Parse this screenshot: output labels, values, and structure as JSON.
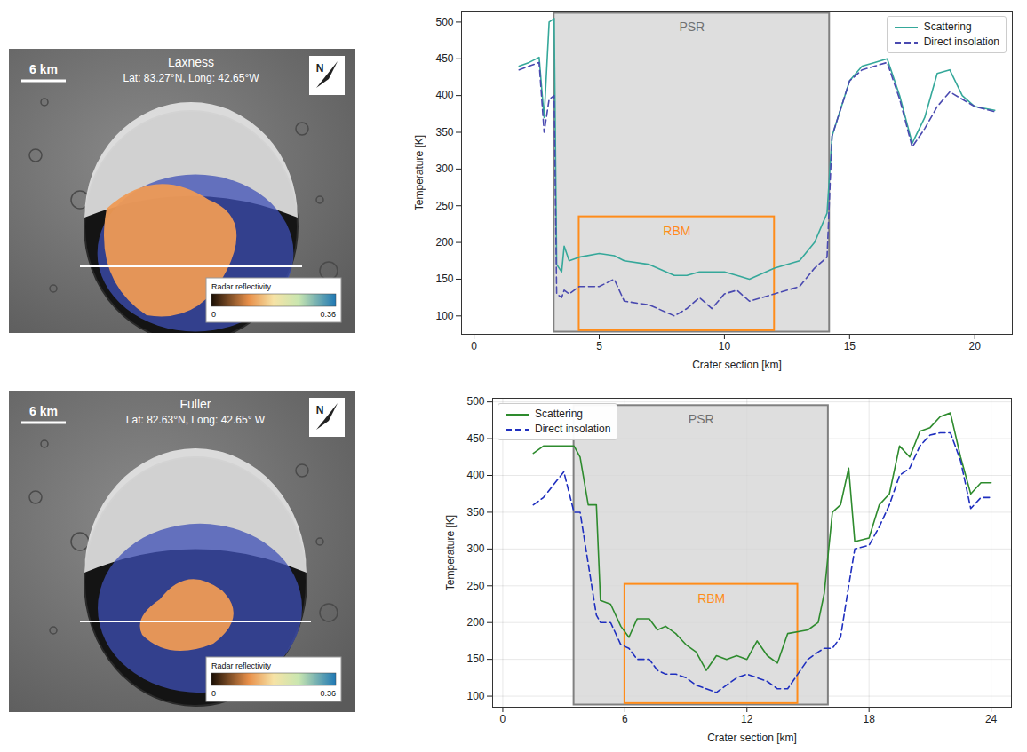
{
  "maps": [
    {
      "name": "Laxness",
      "coords": "Lat: 83.27°N, Long: 42.65°W",
      "scale_bar": "6 km",
      "north": "N",
      "colorbar": {
        "label": "Radar reflectivity",
        "range": [
          0,
          0.36
        ],
        "ticks": [
          0,
          0.36
        ]
      }
    },
    {
      "name": "Fuller",
      "coords": "Lat: 82.63°N, Long: 42.65° W",
      "scale_bar": "6 km",
      "north": "N",
      "colorbar": {
        "label": "Radar reflectivity",
        "range": [
          0,
          0.36
        ],
        "ticks": [
          0,
          0.36
        ]
      }
    }
  ],
  "chart_data": [
    {
      "type": "line",
      "x_label": "Crater section [km]",
      "y_label": "Temperature [K]",
      "xlim": [
        -0.5,
        21.5
      ],
      "xticks": [
        0,
        5,
        10,
        15,
        20
      ],
      "ylim": [
        75,
        515
      ],
      "yticks": [
        100,
        150,
        200,
        250,
        300,
        350,
        400,
        450,
        500
      ],
      "grid": false,
      "legend": "top-right",
      "x": [
        1.8,
        2.2,
        2.6,
        2.8,
        3.0,
        3.2,
        3.3,
        3.5,
        3.6,
        3.8,
        4.2,
        5,
        5.6,
        6,
        7,
        8,
        8.5,
        9,
        9.5,
        10,
        10.5,
        11,
        12,
        13,
        13.6,
        14.1,
        14.3,
        15,
        15.5,
        16,
        16.5,
        17,
        17.5,
        18,
        18.5,
        19,
        19.5,
        20,
        20.8
      ],
      "series": [
        {
          "name": "Scattering",
          "color": "#35a89a",
          "line_style": "solid",
          "values": [
            440,
            445,
            452,
            370,
            500,
            505,
            170,
            160,
            195,
            175,
            180,
            185,
            182,
            175,
            170,
            155,
            155,
            160,
            160,
            160,
            155,
            150,
            165,
            175,
            200,
            240,
            345,
            420,
            440,
            445,
            450,
            400,
            335,
            370,
            430,
            435,
            400,
            385,
            380
          ]
        },
        {
          "name": "Direct insolation",
          "color": "#4a4ab0",
          "line_style": "dashed",
          "values": [
            435,
            440,
            445,
            350,
            395,
            400,
            130,
            125,
            135,
            130,
            140,
            140,
            150,
            120,
            115,
            100,
            110,
            125,
            110,
            130,
            135,
            120,
            130,
            140,
            165,
            180,
            345,
            420,
            435,
            440,
            445,
            395,
            330,
            355,
            385,
            405,
            395,
            385,
            378
          ]
        }
      ],
      "regions": [
        {
          "label": "PSR",
          "color": "#808080",
          "x": [
            3.2,
            14.2
          ],
          "y": [
            78,
            512
          ]
        },
        {
          "label": "RBM",
          "color": "#ff8c1a",
          "x": [
            4.2,
            12
          ],
          "y": [
            80,
            235
          ]
        }
      ]
    },
    {
      "type": "line",
      "x_label": "Crater section [km]",
      "y_label": "Temperature [K]",
      "xlim": [
        -0.5,
        25
      ],
      "xticks": [
        0,
        6,
        12,
        18,
        24
      ],
      "ylim": [
        85,
        505
      ],
      "yticks": [
        100,
        150,
        200,
        250,
        300,
        350,
        400,
        450,
        500
      ],
      "grid": true,
      "legend": "top-left",
      "x": [
        1.5,
        2,
        3,
        3.5,
        3.8,
        4.2,
        4.6,
        4.8,
        5.3,
        5.8,
        6.2,
        6.6,
        7.2,
        7.6,
        8,
        8.5,
        9,
        9.5,
        10,
        10.5,
        11,
        11.5,
        12,
        12.5,
        13,
        13.5,
        14,
        15,
        15.5,
        15.8,
        16.2,
        16.6,
        17,
        17.3,
        18,
        18.5,
        19,
        19.5,
        20,
        20.5,
        21,
        21.5,
        22,
        22.5,
        23,
        23.5,
        24
      ],
      "series": [
        {
          "name": "Scattering",
          "color": "#2e8b2e",
          "line_style": "solid",
          "values": [
            430,
            440,
            440,
            440,
            425,
            360,
            360,
            230,
            225,
            195,
            180,
            205,
            205,
            190,
            195,
            185,
            170,
            160,
            135,
            155,
            150,
            155,
            150,
            175,
            155,
            145,
            185,
            190,
            200,
            240,
            350,
            360,
            410,
            310,
            315,
            360,
            375,
            440,
            425,
            460,
            465,
            480,
            485,
            425,
            375,
            390,
            390
          ]
        },
        {
          "name": "Direct insolation",
          "color": "#1f2fbf",
          "line_style": "dashed",
          "values": [
            360,
            370,
            405,
            350,
            350,
            280,
            210,
            200,
            200,
            170,
            165,
            150,
            150,
            135,
            130,
            130,
            125,
            115,
            110,
            105,
            115,
            125,
            130,
            125,
            120,
            110,
            110,
            150,
            160,
            165,
            165,
            180,
            250,
            300,
            305,
            330,
            360,
            400,
            410,
            440,
            455,
            458,
            458,
            420,
            355,
            370,
            370
          ]
        }
      ],
      "regions": [
        {
          "label": "PSR",
          "color": "#808080",
          "x": [
            3.5,
            16
          ],
          "y": [
            88,
            495
          ]
        },
        {
          "label": "RBM",
          "color": "#ff8c1a",
          "x": [
            6,
            14.5
          ],
          "y": [
            90,
            252
          ]
        }
      ]
    }
  ]
}
